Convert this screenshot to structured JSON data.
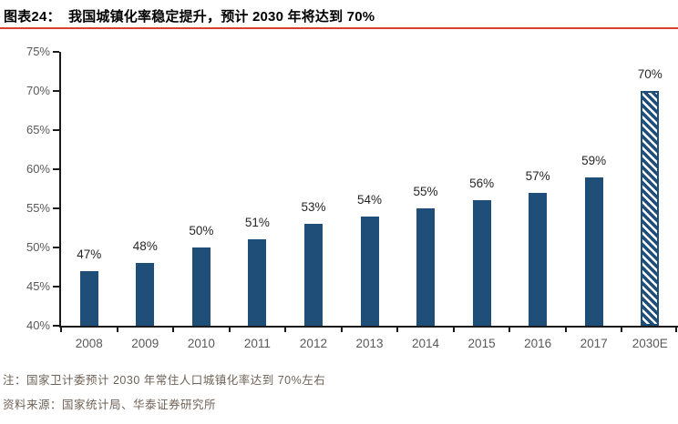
{
  "header": {
    "label": "图表24：",
    "title": "我国城镇化率稳定提升，预计 2030 年将达到 70%"
  },
  "chart_data": {
    "type": "bar",
    "title": "我国城镇化率稳定提升，预计 2030 年将达到 70%",
    "categories": [
      "2008",
      "2009",
      "2010",
      "2011",
      "2012",
      "2013",
      "2014",
      "2015",
      "2016",
      "2017",
      "2030E"
    ],
    "values": [
      47,
      48,
      50,
      51,
      53,
      54,
      55,
      56,
      57,
      59,
      70
    ],
    "data_labels": [
      "47%",
      "48%",
      "50%",
      "51%",
      "53%",
      "54%",
      "55%",
      "56%",
      "57%",
      "59%",
      "70%"
    ],
    "ytick_labels": [
      "75%",
      "70%",
      "65%",
      "60%",
      "55%",
      "50%",
      "45%",
      "40%"
    ],
    "ylim": [
      40,
      75
    ],
    "ytick_step": 5,
    "xlabel": "",
    "ylabel": "",
    "grid": false,
    "legend": false,
    "forecast_category": "2030E",
    "forecast_style": "diagonal-hatch"
  },
  "notes": {
    "note": "注：国家卫计委预计 2030 年常住人口城镇化率达到 70%左右",
    "source": "资料来源：国家统计局、华泰证券研究所"
  },
  "colors": {
    "bar": "#1f4e79",
    "accent_line": "#d9402f",
    "axis": "#1a1a1a",
    "tick_label": "#595959",
    "data_label": "#262626",
    "note_text": "#6f6257",
    "title_text": "#000000"
  }
}
